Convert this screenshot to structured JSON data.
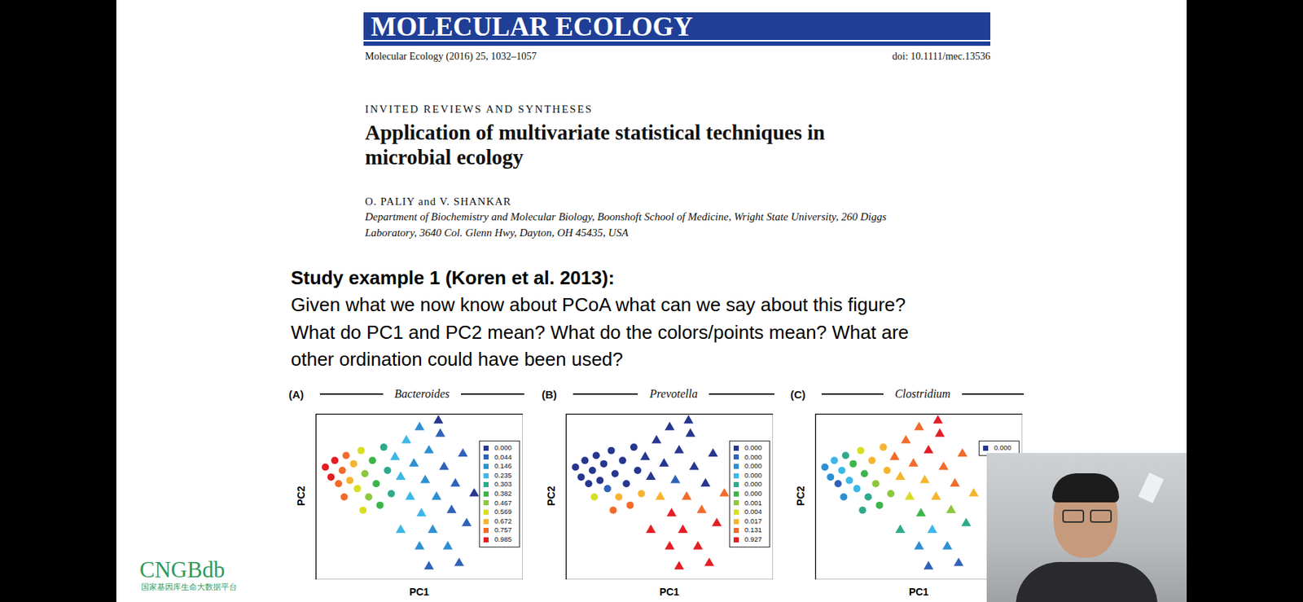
{
  "paper_header": {
    "journal": "MOLECULAR ECOLOGY",
    "citation": "Molecular Ecology (2016) 25, 1032–1057",
    "doi": "doi: 10.1111/mec.13536",
    "section": "INVITED REVIEWS AND SYNTHESES",
    "title_lines": [
      "Application of multivariate statistical techniques in",
      "microbial ecology"
    ],
    "authors": "O. PALIY and V. SHANKAR",
    "affiliation_lines": [
      "Department of Biochemistry and Molecular Biology, Boonshoft School of Medicine, Wright State University, 260 Diggs",
      "Laboratory, 3640 Col. Glenn Hwy, Dayton, OH 45435, USA"
    ]
  },
  "question": {
    "heading": "Study example 1 (Koren et al. 2013):",
    "lines": [
      "Given what we now know about PCoA what can we say about this figure?",
      "What do PC1 and PC2 mean? What do the colors/points mean? What are",
      "other ordination could have been used?"
    ]
  },
  "chart_data": [
    {
      "type": "scatter",
      "panel_label": "(A)",
      "title": "Bacteroides",
      "xlabel": "PC1",
      "ylabel": "PC2",
      "tick_labels": false,
      "xlim": [
        0,
        110
      ],
      "ylim": [
        0,
        100
      ],
      "legend": "right",
      "series": [
        {
          "marker": "circle",
          "x": [
            5,
            8,
            10,
            12,
            14,
            16,
            18,
            20,
            22,
            24,
            26,
            28,
            30,
            32,
            34,
            36,
            38,
            40,
            15,
            25
          ],
          "y": [
            68,
            62,
            72,
            58,
            66,
            75,
            60,
            70,
            55,
            78,
            64,
            50,
            72,
            58,
            45,
            80,
            66,
            52,
            50,
            42
          ],
          "colors": [
            "#e31e25",
            "#e31e25",
            "#e31e25",
            "#f26b2b",
            "#f26b2b",
            "#f26b2b",
            "#f6b42f",
            "#f6b42f",
            "#d7df23",
            "#d7df23",
            "#8dc63f",
            "#8dc63f",
            "#3cb54a",
            "#3cb54a",
            "#3cb54a",
            "#2fa98c",
            "#2fa98c",
            "#2fa98c",
            "#f26b2b",
            "#d7df23"
          ]
        },
        {
          "marker": "triangle",
          "x": [
            42,
            45,
            48,
            50,
            52,
            55,
            56,
            58,
            60,
            62,
            64,
            66,
            68,
            70,
            72,
            74,
            76,
            78,
            80,
            45,
            55,
            65,
            84,
            60
          ],
          "y": [
            74,
            62,
            84,
            50,
            70,
            92,
            40,
            60,
            78,
            30,
            50,
            88,
            68,
            20,
            42,
            58,
            10,
            76,
            34,
            30,
            20,
            96,
            52,
            8
          ],
          "colors": [
            "#3db7e6",
            "#3db7e6",
            "#3db7e6",
            "#3db7e6",
            "#2e8fd3",
            "#2e8fd3",
            "#3db7e6",
            "#2e8fd3",
            "#2e8fd3",
            "#2e8fd3",
            "#2e8fd3",
            "#2f62b8",
            "#2f62b8",
            "#2e8fd3",
            "#2f62b8",
            "#2f62b8",
            "#2f62b8",
            "#2f62b8",
            "#2f62b8",
            "#3db7e6",
            "#2e8fd3",
            "#27368f",
            "#27368f",
            "#2f62b8"
          ]
        }
      ],
      "color_bins": [
        {
          "label": "0.000",
          "color": "#27368f"
        },
        {
          "label": "0.044",
          "color": "#2f62b8"
        },
        {
          "label": "0.146",
          "color": "#2e8fd3"
        },
        {
          "label": "0.235",
          "color": "#3db7e6"
        },
        {
          "label": "0.303",
          "color": "#2fa98c"
        },
        {
          "label": "0.382",
          "color": "#3cb54a"
        },
        {
          "label": "0.467",
          "color": "#8dc63f"
        },
        {
          "label": "0.569",
          "color": "#d7df23"
        },
        {
          "label": "0.672",
          "color": "#f6b42f"
        },
        {
          "label": "0.757",
          "color": "#f26b2b"
        },
        {
          "label": "0.985",
          "color": "#e31e25"
        }
      ]
    },
    {
      "type": "scatter",
      "panel_label": "(B)",
      "title": "Prevotella",
      "xlabel": "PC1",
      "ylabel": "PC2",
      "tick_labels": false,
      "xlim": [
        0,
        110
      ],
      "ylim": [
        0,
        100
      ],
      "legend": "right",
      "series": [
        {
          "marker": "circle",
          "x": [
            5,
            8,
            10,
            12,
            14,
            16,
            18,
            20,
            22,
            24,
            26,
            28,
            30,
            32,
            34,
            36,
            38,
            40,
            15,
            25
          ],
          "y": [
            68,
            62,
            72,
            58,
            66,
            75,
            60,
            70,
            55,
            78,
            64,
            50,
            72,
            58,
            45,
            80,
            66,
            52,
            50,
            42
          ],
          "colors": [
            "#27368f",
            "#27368f",
            "#27368f",
            "#27368f",
            "#27368f",
            "#27368f",
            "#27368f",
            "#27368f",
            "#2f62b8",
            "#27368f",
            "#27368f",
            "#f6b42f",
            "#27368f",
            "#27368f",
            "#f26b2b",
            "#27368f",
            "#27368f",
            "#f6b42f",
            "#d7df23",
            "#f26b2b"
          ]
        },
        {
          "marker": "triangle",
          "x": [
            42,
            45,
            48,
            50,
            52,
            55,
            56,
            58,
            60,
            62,
            64,
            66,
            68,
            70,
            72,
            74,
            76,
            78,
            80,
            45,
            55,
            65,
            84,
            60
          ],
          "y": [
            74,
            62,
            84,
            50,
            70,
            92,
            40,
            60,
            78,
            30,
            50,
            88,
            68,
            20,
            42,
            58,
            10,
            76,
            34,
            30,
            20,
            96,
            52,
            8
          ],
          "colors": [
            "#27368f",
            "#27368f",
            "#27368f",
            "#f6b42f",
            "#27368f",
            "#27368f",
            "#e31e25",
            "#2f62b8",
            "#27368f",
            "#e31e25",
            "#f26b2b",
            "#27368f",
            "#27368f",
            "#e31e25",
            "#f26b2b",
            "#27368f",
            "#e31e25",
            "#27368f",
            "#e31e25",
            "#e31e25",
            "#e31e25",
            "#27368f",
            "#f26b2b",
            "#e31e25"
          ]
        }
      ],
      "color_bins": [
        {
          "label": "0.000",
          "color": "#27368f"
        },
        {
          "label": "0.000",
          "color": "#2f62b8"
        },
        {
          "label": "0.000",
          "color": "#2e8fd3"
        },
        {
          "label": "0.000",
          "color": "#3db7e6"
        },
        {
          "label": "0.000",
          "color": "#2fa98c"
        },
        {
          "label": "0.000",
          "color": "#3cb54a"
        },
        {
          "label": "0.001",
          "color": "#8dc63f"
        },
        {
          "label": "0.004",
          "color": "#d7df23"
        },
        {
          "label": "0.017",
          "color": "#f6b42f"
        },
        {
          "label": "0.131",
          "color": "#f26b2b"
        },
        {
          "label": "0.927",
          "color": "#e31e25"
        }
      ]
    },
    {
      "type": "scatter",
      "panel_label": "(C)",
      "title": "Clostridium",
      "xlabel": "PC1",
      "ylabel": "PC2",
      "tick_labels": false,
      "xlim": [
        0,
        110
      ],
      "ylim": [
        0,
        100
      ],
      "legend": "right",
      "series": [
        {
          "marker": "circle",
          "x": [
            5,
            8,
            10,
            12,
            14,
            16,
            18,
            20,
            22,
            24,
            26,
            28,
            30,
            32,
            34,
            36,
            38,
            40,
            15,
            25
          ],
          "y": [
            68,
            62,
            72,
            58,
            66,
            75,
            60,
            70,
            55,
            78,
            64,
            50,
            72,
            58,
            45,
            80,
            66,
            52,
            50,
            42
          ],
          "colors": [
            "#2e8fd3",
            "#2e8fd3",
            "#3db7e6",
            "#2f62b8",
            "#3db7e6",
            "#2fa98c",
            "#3db7e6",
            "#3cb54a",
            "#3db7e6",
            "#d7df23",
            "#3cb54a",
            "#2fa98c",
            "#f6b42f",
            "#8dc63f",
            "#3cb54a",
            "#f6b42f",
            "#f6b42f",
            "#8dc63f",
            "#2e8fd3",
            "#2fa98c"
          ]
        },
        {
          "marker": "triangle",
          "x": [
            42,
            45,
            48,
            50,
            52,
            55,
            56,
            58,
            60,
            62,
            64,
            66,
            68,
            70,
            72,
            74,
            76,
            78,
            80,
            45,
            55,
            65,
            84,
            60
          ],
          "y": [
            74,
            62,
            84,
            50,
            70,
            92,
            40,
            60,
            78,
            30,
            50,
            88,
            68,
            20,
            42,
            58,
            10,
            76,
            34,
            30,
            20,
            96,
            52,
            8
          ],
          "colors": [
            "#f26b2b",
            "#f6b42f",
            "#f26b2b",
            "#d7df23",
            "#f26b2b",
            "#f26b2b",
            "#3cb54a",
            "#f6b42f",
            "#e31e25",
            "#3db7e6",
            "#f6b42f",
            "#e31e25",
            "#f26b2b",
            "#2e8fd3",
            "#8dc63f",
            "#f26b2b",
            "#2f62b8",
            "#f26b2b",
            "#2fa98c",
            "#2fa98c",
            "#2e8fd3",
            "#e31e25",
            "#f6b42f",
            "#2f62b8"
          ]
        }
      ],
      "color_bins": [
        {
          "label": "0.000",
          "color": "#27368f"
        }
      ]
    }
  ],
  "logo": {
    "name": "CNGBdb",
    "subtitle": "国家基因库生命大数据平台"
  }
}
